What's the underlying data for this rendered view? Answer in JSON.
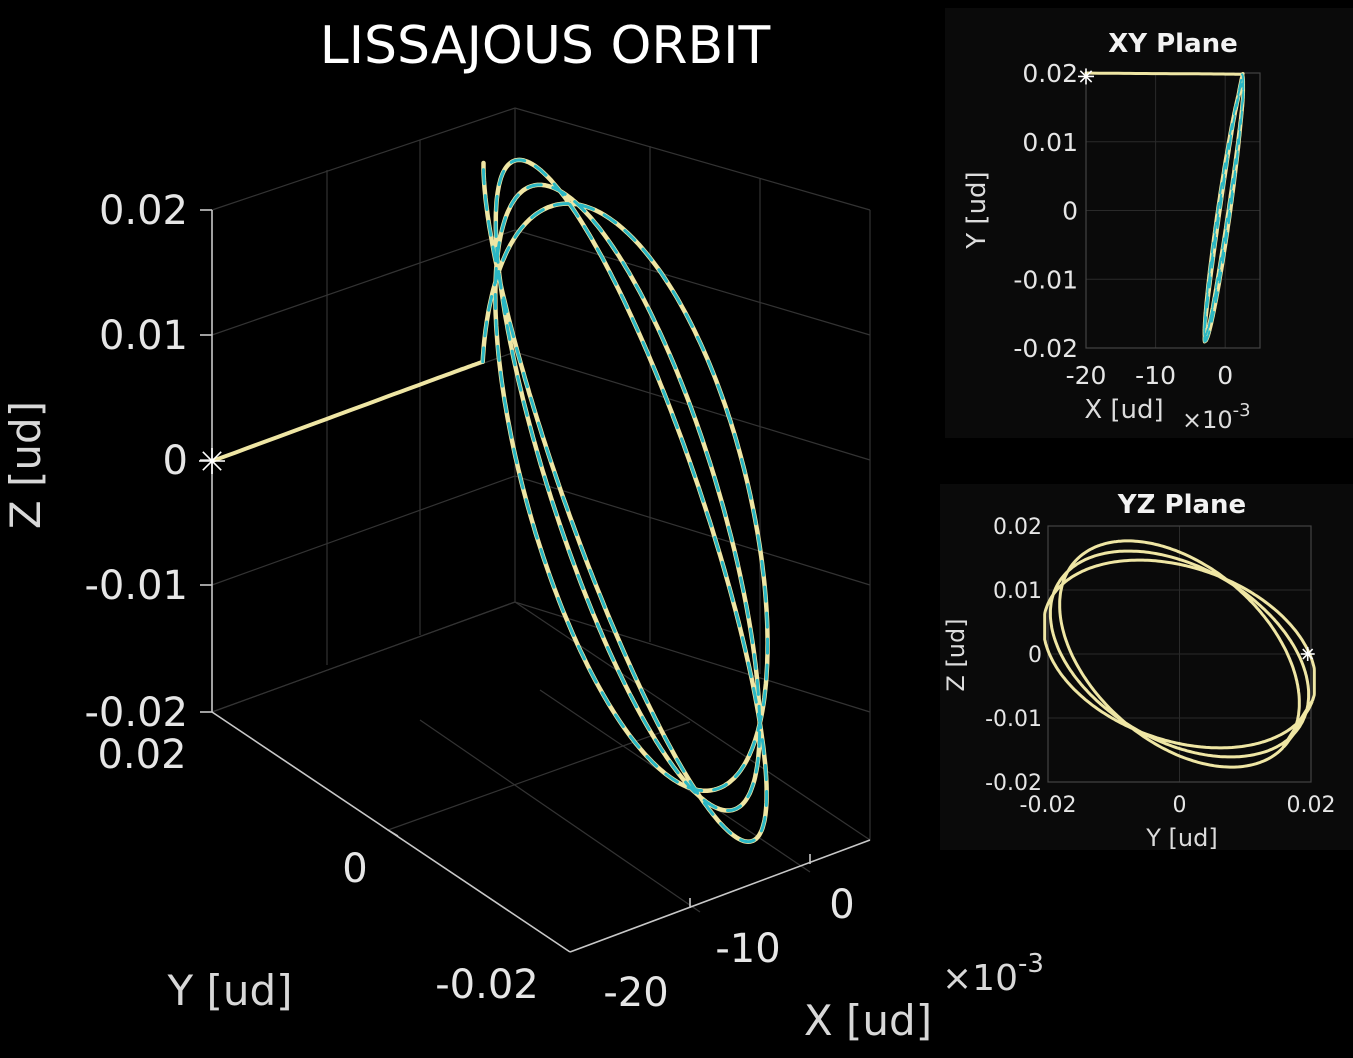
{
  "figure": {
    "title": "LISSAJOUS ORBIT"
  },
  "colors": {
    "background": "#000000",
    "orbit": "#efe6a4",
    "reference": "#2ab7c4",
    "grid": "#3a3a3a",
    "axis": "#bdbdbd",
    "text": "#e6e6e6"
  },
  "chart_data": [
    {
      "type": "line",
      "panel": "3d",
      "xlabel": "X [ud]",
      "ylabel": "Y [ud]",
      "zlabel": "Z [ud]",
      "x_exponent": "×10",
      "x_exponent_power": "-3",
      "x_ticks": [
        "-20",
        "-10",
        "0"
      ],
      "y_ticks": [
        "0.02",
        "0",
        "-0.02"
      ],
      "z_ticks": [
        "0.02",
        "0.01",
        "0",
        "-0.01",
        "-0.02"
      ],
      "xlim": [
        -20,
        5
      ],
      "ylim": [
        -0.02,
        0.02
      ],
      "zlim": [
        -0.02,
        0.02
      ],
      "grid": true,
      "series": [
        {
          "name": "",
          "style": "solid",
          "color": "#efe6a4"
        },
        {
          "name": "",
          "style": "dashed",
          "color": "#2ab7c4"
        }
      ],
      "start_marker": {
        "x": -20,
        "y": 0.02,
        "z": 0
      }
    },
    {
      "type": "line",
      "panel": "xy",
      "title": "XY Plane",
      "xlabel": "X [ud]",
      "ylabel": "Y [ud]",
      "x_exponent": "×10",
      "x_exponent_power": "-3",
      "x_ticks": [
        "-20",
        "-10",
        "0"
      ],
      "y_ticks": [
        "0.02",
        "0.01",
        "0",
        "-0.01",
        "-0.02"
      ],
      "xlim": [
        -20,
        5
      ],
      "ylim": [
        -0.02,
        0.02
      ],
      "grid": true,
      "start_marker": {
        "x": -20,
        "y": 0.0195
      }
    },
    {
      "type": "line",
      "panel": "yz",
      "title": "YZ Plane",
      "xlabel": "Y [ud]",
      "ylabel": "Z [ud]",
      "x_ticks": [
        "-0.02",
        "0",
        "0.02"
      ],
      "y_ticks": [
        "0.02",
        "0.01",
        "0",
        "-0.01",
        "-0.02"
      ],
      "xlim": [
        -0.02,
        0.02
      ],
      "ylim": [
        -0.02,
        0.02
      ],
      "grid": true,
      "start_marker": {
        "y": 0.0195,
        "z": 0
      }
    }
  ]
}
